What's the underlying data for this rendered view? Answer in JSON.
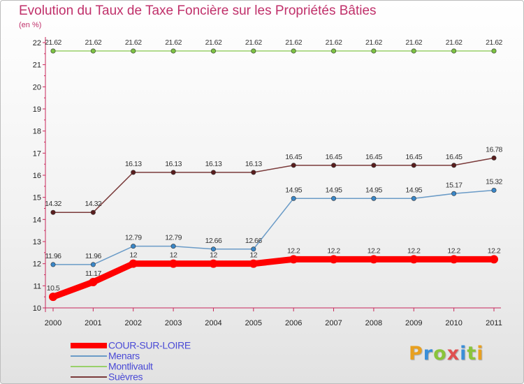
{
  "chart_title": "Evolution du Taux de Taxe Foncière sur les Propriétés Bâties",
  "chart_unit": "(en %)",
  "logo": {
    "letters": [
      "P",
      "r",
      "o",
      "x",
      "i",
      "t",
      "i"
    ]
  },
  "chart_data": {
    "type": "line",
    "title": "Evolution du Taux de Taxe Foncière sur les Propriétés Bâties",
    "ylabel": "(en %)",
    "xlabel": "",
    "ylim": [
      10,
      22
    ],
    "grid": false,
    "x": [
      "2000",
      "2001",
      "2002",
      "2003",
      "2004",
      "2005",
      "2006",
      "2007",
      "2008",
      "2009",
      "2010",
      "2011"
    ],
    "yticks": [
      "10",
      "11",
      "12",
      "13",
      "14",
      "15",
      "16",
      "17",
      "18",
      "19",
      "20",
      "21",
      "22"
    ],
    "legend_position": "bottom-left",
    "series": [
      {
        "name": "COUR-SUR-LOIRE",
        "color": "#ff0000",
        "emphasis": true,
        "values": [
          10.5,
          11.17,
          12,
          12,
          12,
          12,
          12.2,
          12.2,
          12.2,
          12.2,
          12.2,
          12.2
        ],
        "labels": [
          "10.5",
          "11.17",
          "12",
          "12",
          "12",
          "12",
          "12.2",
          "12.2",
          "12.2",
          "12.2",
          "12.2",
          "12.2"
        ]
      },
      {
        "name": "Menars",
        "color": "#6a9bc7",
        "dot": "#3a87c8",
        "values": [
          11.96,
          11.96,
          12.79,
          12.79,
          12.66,
          12.66,
          14.95,
          14.95,
          14.95,
          14.95,
          15.17,
          15.32
        ],
        "labels": [
          "11.96",
          "11.96",
          "12.79",
          "12.79",
          "12.66",
          "12.66",
          "14.95",
          "14.95",
          "14.95",
          "14.95",
          "15.17",
          "15.32"
        ]
      },
      {
        "name": "Montlivault",
        "color": "#99d06a",
        "dot": "#7cc242",
        "values": [
          21.62,
          21.62,
          21.62,
          21.62,
          21.62,
          21.62,
          21.62,
          21.62,
          21.62,
          21.62,
          21.62,
          21.62
        ],
        "labels": [
          "21.62",
          "21.62",
          "21.62",
          "21.62",
          "21.62",
          "21.62",
          "21.62",
          "21.62",
          "21.62",
          "21.62",
          "21.62",
          "21.62"
        ]
      },
      {
        "name": "Suèvres",
        "color": "#7a3a3a",
        "dot": "#5a1e1e",
        "values": [
          14.32,
          14.32,
          16.13,
          16.13,
          16.13,
          16.13,
          16.45,
          16.45,
          16.45,
          16.45,
          16.45,
          16.78
        ],
        "labels": [
          "14.32",
          "14.32",
          "16.13",
          "16.13",
          "16.13",
          "16.13",
          "16.45",
          "16.45",
          "16.45",
          "16.45",
          "16.45",
          "16.78"
        ]
      }
    ]
  }
}
